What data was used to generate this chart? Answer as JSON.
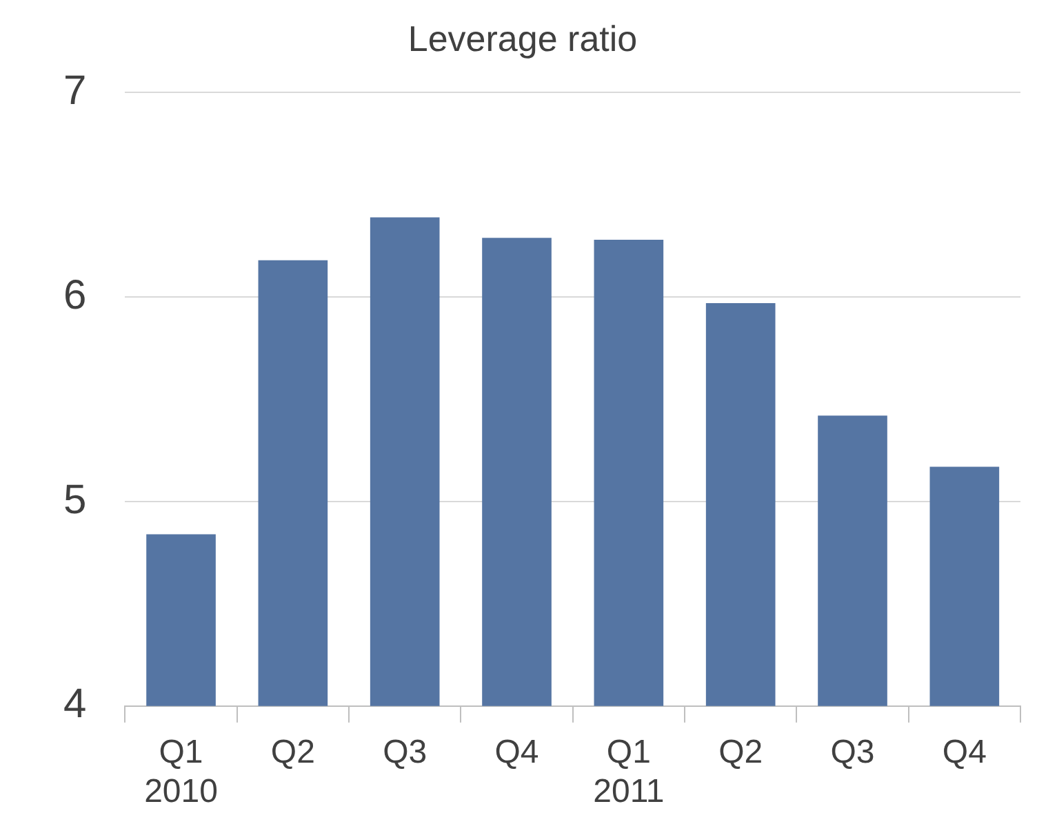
{
  "chart_data": {
    "type": "bar",
    "title": "Leverage ratio",
    "categories": [
      "Q1\n2010",
      "Q2",
      "Q3",
      "Q4",
      "Q1\n2011",
      "Q2",
      "Q3",
      "Q4"
    ],
    "values": [
      4.84,
      6.18,
      6.39,
      6.29,
      6.28,
      5.97,
      5.42,
      5.17
    ],
    "color": "#5575a3",
    "ylim": [
      4,
      7
    ],
    "yticks": [
      4,
      5,
      6,
      7
    ],
    "grid": "y",
    "legend": false
  }
}
